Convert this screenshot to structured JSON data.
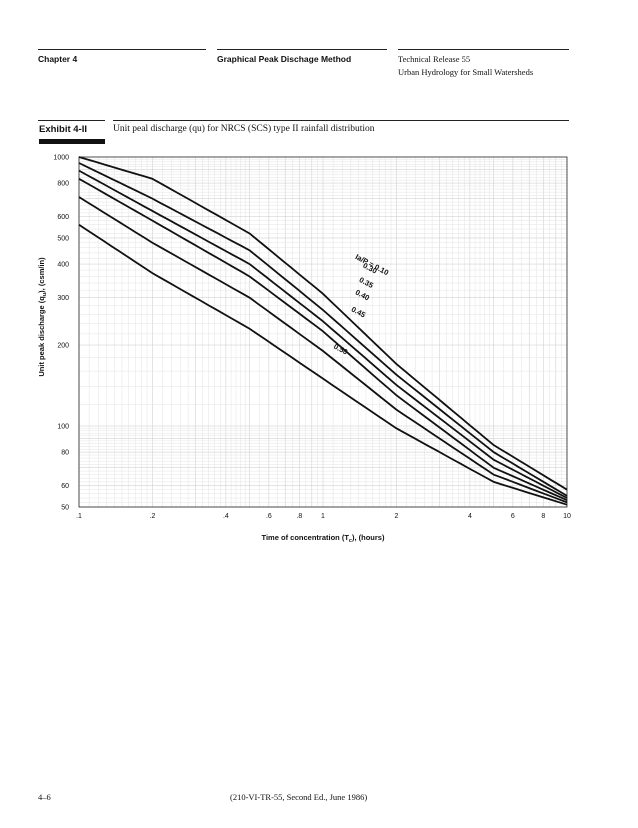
{
  "header": {
    "chapter": "Chapter 4",
    "section": "Graphical Peak Dischage Method",
    "release_line1": "Technical Release 55",
    "release_line2": "Urban Hydrology for Small Watersheds"
  },
  "exhibit": {
    "label": "Exhibit 4-II",
    "title": "Unit peal discharge (qu) for NRCS (SCS) type II rainfall distribution"
  },
  "footer": {
    "page_number": "4–6",
    "citation": "(210-VI-TR-55, Second Ed., June 1986)"
  },
  "chart_data": {
    "type": "line",
    "xscale": "log",
    "yscale": "log",
    "xlim": [
      0.1,
      10
    ],
    "ylim": [
      50,
      1000
    ],
    "grid": true,
    "xlabel": "Time of concentration (T",
    "xlabel_sub": "c",
    "xlabel_tail": "), (hours)",
    "ylabel": "Unit peak discharge (q",
    "ylabel_sub": "u",
    "ylabel_tail": "), (csm/in)",
    "x_ticks": [
      {
        "value": 0.1,
        "label": ".1"
      },
      {
        "value": 0.2,
        "label": ".2"
      },
      {
        "value": 0.4,
        "label": ".4"
      },
      {
        "value": 0.6,
        "label": ".6"
      },
      {
        "value": 0.8,
        "label": ".8"
      },
      {
        "value": 1,
        "label": "1"
      },
      {
        "value": 2,
        "label": "2"
      },
      {
        "value": 4,
        "label": "4"
      },
      {
        "value": 6,
        "label": "6"
      },
      {
        "value": 8,
        "label": "8"
      },
      {
        "value": 10,
        "label": "10"
      }
    ],
    "y_ticks": [
      {
        "value": 50,
        "label": "50"
      },
      {
        "value": 60,
        "label": "60"
      },
      {
        "value": 80,
        "label": "80"
      },
      {
        "value": 100,
        "label": "100"
      },
      {
        "value": 200,
        "label": "200"
      },
      {
        "value": 300,
        "label": "300"
      },
      {
        "value": 400,
        "label": "400"
      },
      {
        "value": 500,
        "label": "500"
      },
      {
        "value": 600,
        "label": "600"
      },
      {
        "value": 800,
        "label": "800"
      },
      {
        "value": 1000,
        "label": "1000"
      }
    ],
    "x": [
      0.1,
      0.2,
      0.5,
      1,
      2,
      5,
      10
    ],
    "series": [
      {
        "name": "Ia/P = 0.10",
        "values": [
          1000,
          830,
          520,
          310,
          170,
          85,
          58
        ]
      },
      {
        "name": "0.30",
        "values": [
          950,
          700,
          450,
          270,
          155,
          80,
          55
        ]
      },
      {
        "name": "0.35",
        "values": [
          890,
          630,
          400,
          245,
          142,
          75,
          54
        ]
      },
      {
        "name": "0.40",
        "values": [
          830,
          580,
          360,
          225,
          130,
          70,
          53
        ]
      },
      {
        "name": "0.45",
        "values": [
          710,
          480,
          300,
          190,
          115,
          66,
          52
        ]
      },
      {
        "name": "0.50",
        "values": [
          560,
          370,
          230,
          150,
          98,
          62,
          51
        ]
      }
    ],
    "annotations": [
      {
        "text": "Ia/P = 0.10",
        "x": 1.35,
        "y": 420
      },
      {
        "text": "0.30",
        "x": 1.45,
        "y": 390
      },
      {
        "text": "0.35",
        "x": 1.4,
        "y": 345
      },
      {
        "text": "0.40",
        "x": 1.35,
        "y": 310
      },
      {
        "text": "0.45",
        "x": 1.3,
        "y": 268
      },
      {
        "text": "0.50",
        "x": 1.1,
        "y": 195
      }
    ]
  }
}
